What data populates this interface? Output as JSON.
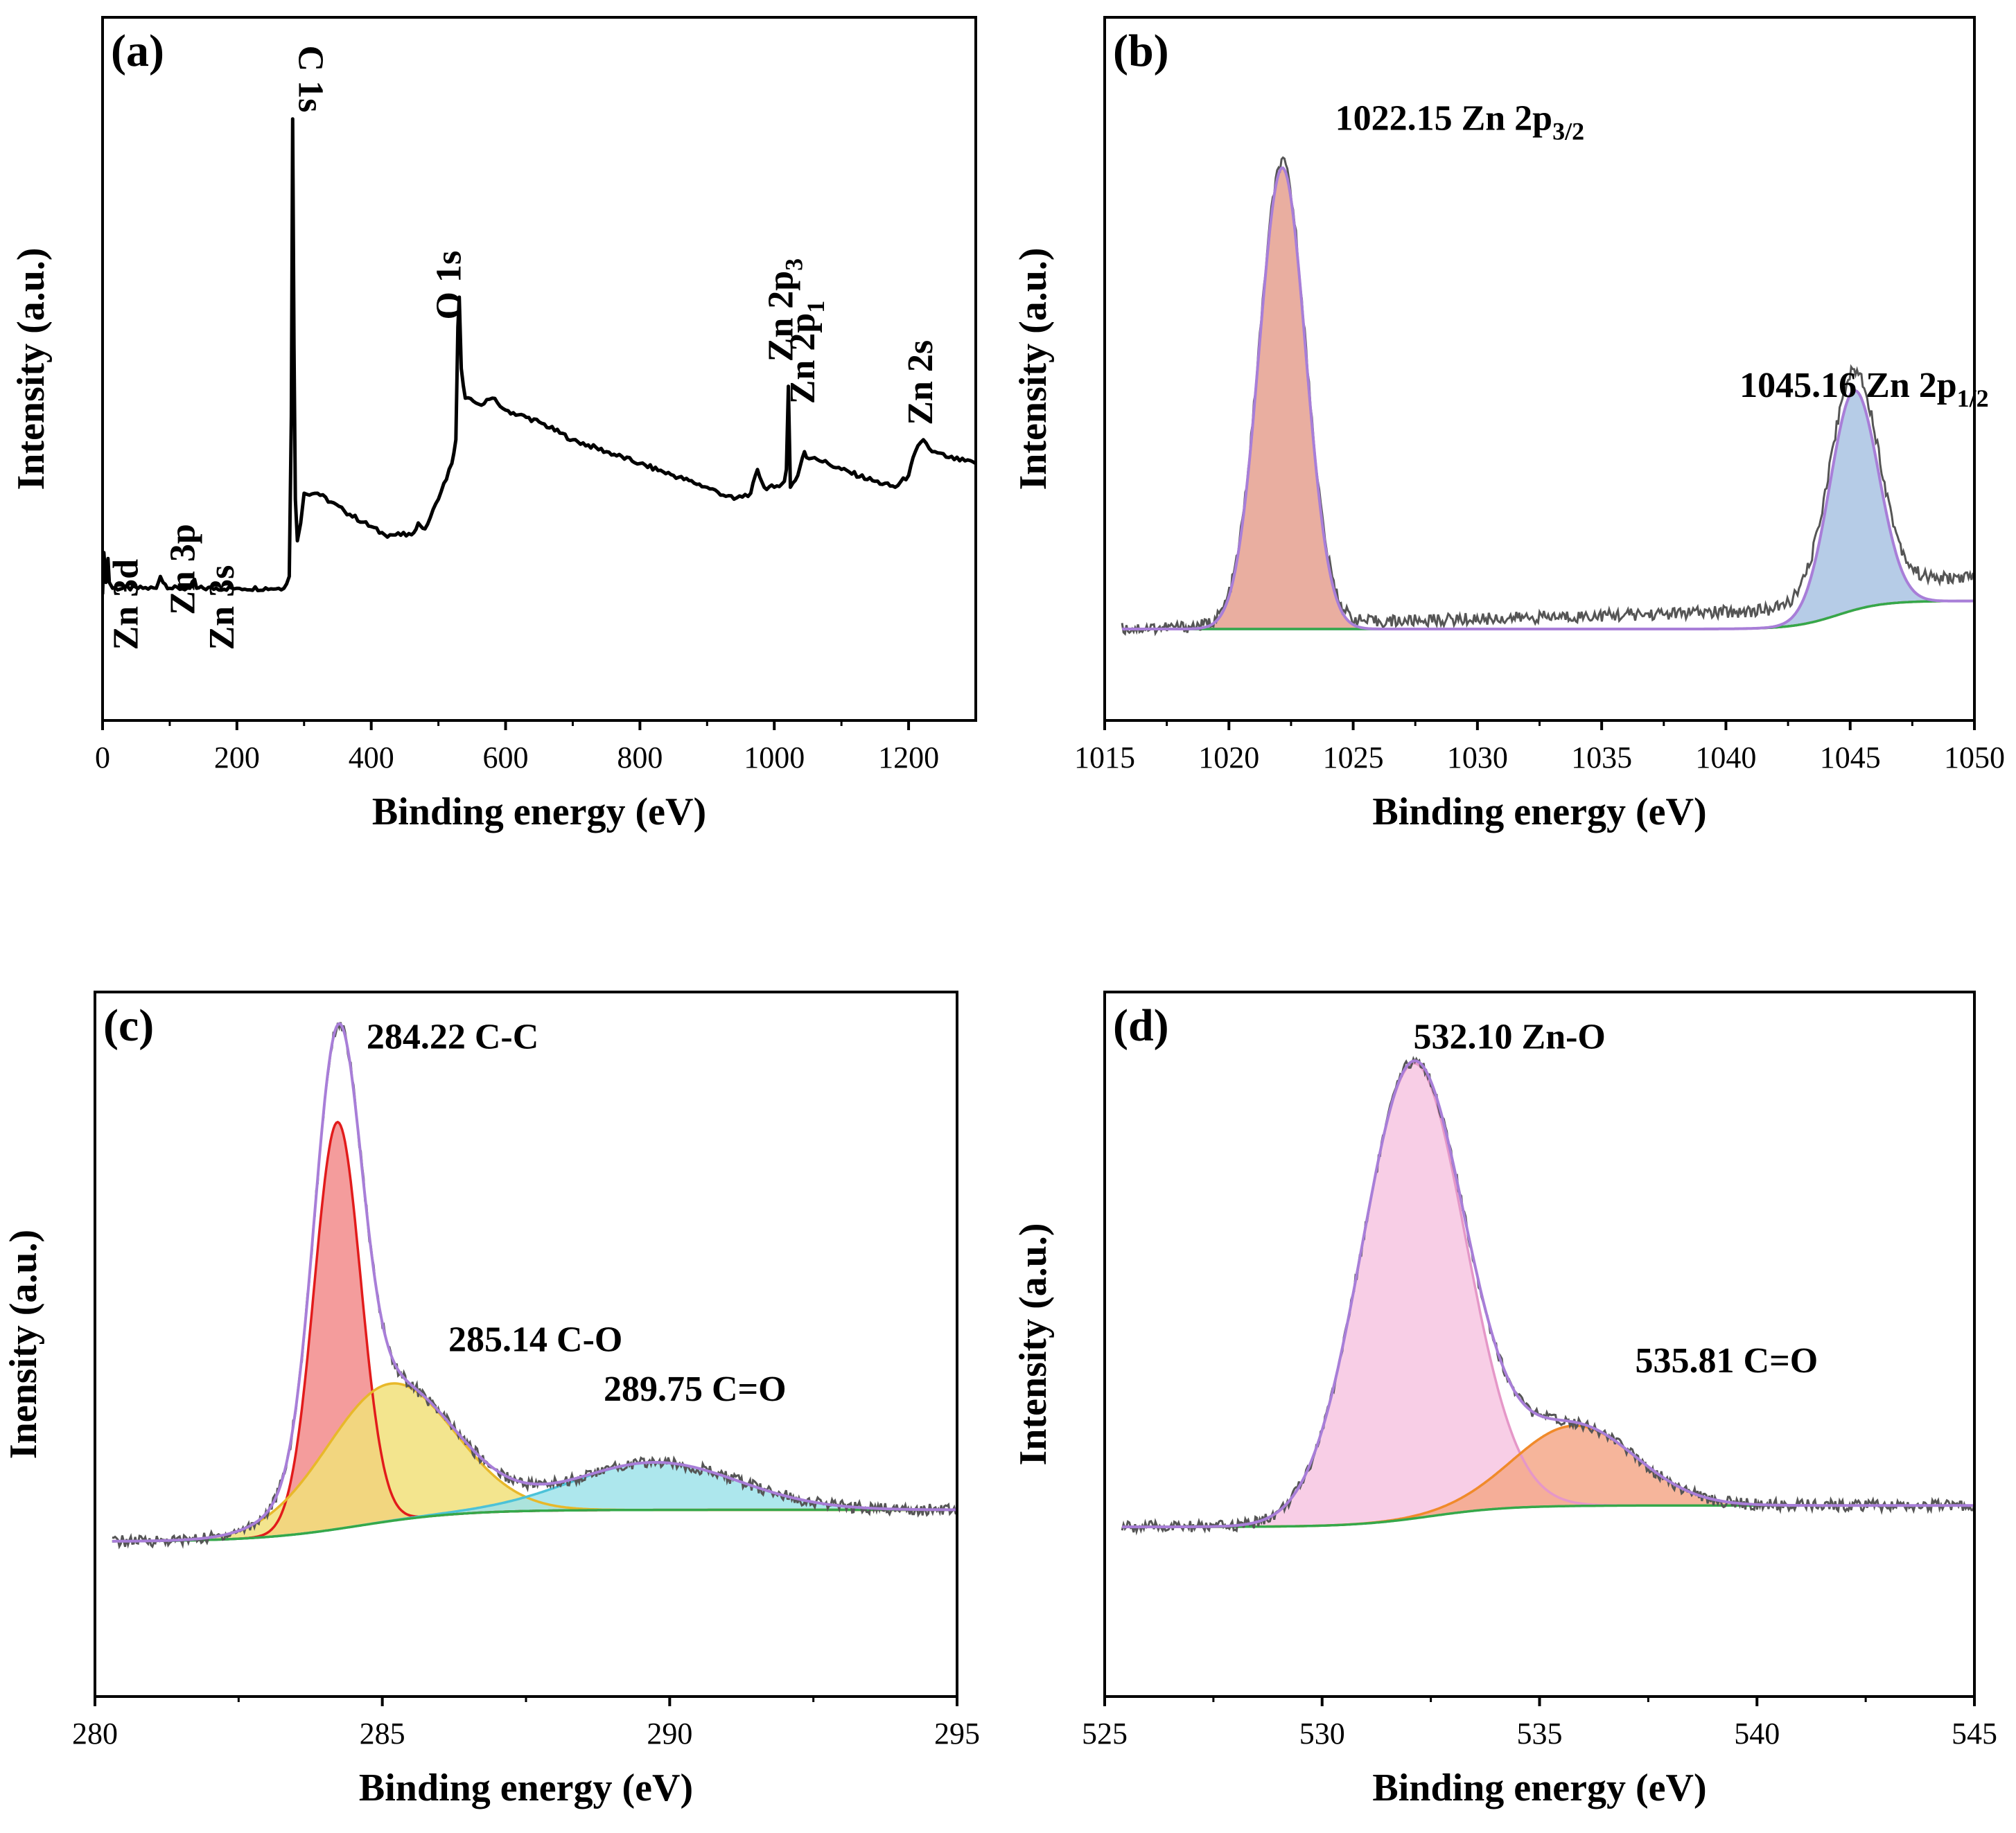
{
  "chart_data": [
    {
      "id": "a",
      "type": "line",
      "panel_label": "(a)",
      "xlabel": "Binding energy (eV)",
      "ylabel": "Intensity (a.u.)",
      "xlim": [
        0,
        1300
      ],
      "ylim": [
        0,
        100
      ],
      "xticks": [
        0,
        200,
        400,
        600,
        800,
        1000,
        1200
      ],
      "yticks_shown": false,
      "series": [
        {
          "name": "survey",
          "color": "#000000",
          "x": [
            0,
            2,
            5,
            8,
            10,
            15,
            30,
            60,
            80,
            86,
            90,
            100,
            130,
            137,
            140,
            150,
            200,
            270,
            278,
            281,
            283,
            285,
            287,
            290,
            295,
            300,
            320,
            360,
            420,
            460,
            470,
            480,
            500,
            520,
            526,
            529,
            531,
            534,
            540,
            560,
            580,
            600,
            650,
            700,
            750,
            800,
            850,
            900,
            940,
            965,
            975,
            985,
            1000,
            1015,
            1018,
            1021,
            1024,
            1035,
            1042,
            1045,
            1048,
            1060,
            1100,
            1150,
            1180,
            1200,
            1210,
            1222,
            1235,
            1260,
            1300
          ],
          "y": [
            10,
            17,
            12,
            16,
            12,
            11,
            11,
            11,
            11,
            13,
            12,
            11,
            11,
            12.5,
            11,
            11,
            11,
            11,
            13,
            40,
            90,
            52,
            26,
            19,
            22,
            27,
            27,
            24,
            20,
            20,
            22,
            21,
            26,
            32,
            36,
            55,
            60,
            48,
            43,
            42,
            43,
            41,
            39,
            36,
            34,
            32,
            30,
            28,
            26,
            27,
            31,
            28,
            28,
            29,
            31,
            45,
            28,
            30,
            33,
            34,
            33,
            33,
            31,
            29,
            28,
            30,
            34,
            36,
            34,
            33,
            32
          ]
        }
      ],
      "annotations": [
        {
          "label": "Zn 3d",
          "x": 2,
          "rotation": -90
        },
        {
          "label": "Zn 3p",
          "x": 88,
          "rotation": -90
        },
        {
          "label": "Zn 3s",
          "x": 138,
          "rotation": -90
        },
        {
          "label": "C 1s",
          "x": 285,
          "rotation": 90
        },
        {
          "label": "O 1s",
          "x": 531,
          "rotation": -90
        },
        {
          "label": "Zn 2p",
          "sub": "3",
          "x": 1021,
          "rotation": -90
        },
        {
          "label": "Zn 2p",
          "sub": "1",
          "x": 1045,
          "rotation": -90
        },
        {
          "label": "Zn 2s",
          "x": 1222,
          "rotation": -90
        }
      ]
    },
    {
      "id": "b",
      "type": "line",
      "panel_label": "(b)",
      "xlabel": "Binding energy (eV)",
      "ylabel": "Intensity (a.u.)",
      "xlim": [
        1015,
        1050
      ],
      "ylim": [
        0,
        100
      ],
      "xticks": [
        1015,
        1020,
        1025,
        1030,
        1035,
        1040,
        1045,
        1050
      ],
      "yticks_shown": false,
      "background": {
        "color": "#35a84a",
        "start": 10,
        "end": 15,
        "step_center": 1044.5
      },
      "fits": [
        {
          "name": "Zn 2p3/2",
          "center": 1022.15,
          "height": 82,
          "fwhm": 2.2,
          "fill": "#e5a08f",
          "stroke": "#c56a5b"
        },
        {
          "name": "Zn 2p1/2",
          "center": 1045.16,
          "height": 39,
          "fwhm": 2.3,
          "fill": "#a9c3e3",
          "stroke": "#6f94c4"
        }
      ],
      "envelope_color": "#a87ed8",
      "raw_color": "#555555",
      "annotations": [
        {
          "value": "1022.15",
          "text": "Zn 2p",
          "sub": "3/2",
          "x": 1022.15
        },
        {
          "value": "1045.16",
          "text": "Zn 2p",
          "sub": "1/2",
          "x": 1045.16
        }
      ]
    },
    {
      "id": "c",
      "type": "line",
      "panel_label": "(c)",
      "xlabel": "Binding energy (eV)",
      "ylabel": "Inensity (a.u.)",
      "xlim": [
        280,
        295
      ],
      "ylim": [
        0,
        100
      ],
      "xticks": [
        280,
        285,
        290,
        295
      ],
      "yticks_shown": false,
      "background": {
        "color": "#35a84a",
        "start": 4,
        "end": 10,
        "step_center": 284.6
      },
      "fits": [
        {
          "name": "C-C",
          "center": 284.22,
          "height": 77,
          "fwhm": 0.95,
          "fill": "#f28b8b",
          "stroke": "#e21b1b"
        },
        {
          "name": "C-O",
          "center": 285.14,
          "height": 26,
          "fwhm": 2.6,
          "fill": "#f1e07a",
          "stroke": "#e8b82a"
        },
        {
          "name": "C=O",
          "center": 289.75,
          "height": 9,
          "fwhm": 3.4,
          "fill": "#9fe3ea",
          "stroke": "#4cc2d8"
        }
      ],
      "envelope_color": "#a87ed8",
      "raw_color": "#555555",
      "annotations": [
        {
          "value": "284.22",
          "text": "C-C",
          "x": 284.22
        },
        {
          "value": "285.14",
          "text": "C-O",
          "x": 285.14
        },
        {
          "value": "289.75",
          "text": "C=O",
          "x": 289.75
        }
      ]
    },
    {
      "id": "d",
      "type": "line",
      "panel_label": "(d)",
      "xlabel": "Binding energy (eV)",
      "ylabel": "Intensity (a.u.)",
      "xlim": [
        525,
        545
      ],
      "ylim": [
        0,
        100
      ],
      "xticks": [
        525,
        530,
        535,
        540,
        545
      ],
      "yticks_shown": false,
      "background": {
        "color": "#35a84a",
        "start": 8,
        "end": 12,
        "step_center": 532.5
      },
      "fits": [
        {
          "name": "Zn-O",
          "center": 532.1,
          "height": 85,
          "fwhm": 2.8,
          "fill": "#f7c6e2",
          "stroke": "#e597c8"
        },
        {
          "name": "C=O",
          "center": 535.81,
          "height": 15,
          "fwhm": 3.3,
          "fill": "#f4a88a",
          "stroke": "#f08a2a"
        }
      ],
      "envelope_color": "#a87ed8",
      "raw_color": "#555555",
      "annotations": [
        {
          "value": "532.10",
          "text": "Zn-O",
          "x": 532.1
        },
        {
          "value": "535.81",
          "text": "C=O",
          "x": 535.81
        }
      ]
    }
  ]
}
